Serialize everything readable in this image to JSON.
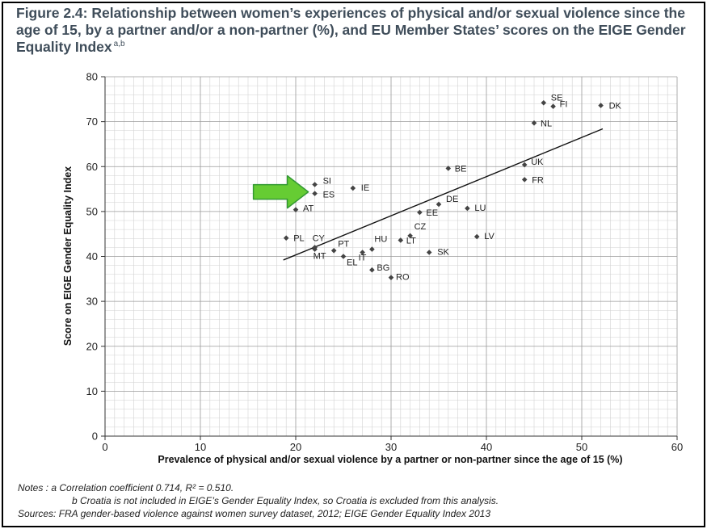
{
  "figure": {
    "title": "Figure 2.4: Relationship between women’s experiences of physical and/or sexual violence since the age of 15, by a partner and/or a non-partner (%), and EU Member States’ scores on the EIGE Gender Equality Index",
    "title_superscript": "a,b"
  },
  "chart_data": {
    "type": "scatter",
    "xlabel": "Prevalence of physical and/or sexual violence by a partner or non-partner since the age of 15 (%)",
    "ylabel": "Score on EIGE Gender Equality Index",
    "xlim": [
      0,
      60
    ],
    "ylim": [
      0,
      80
    ],
    "x_ticks": [
      0,
      10,
      20,
      30,
      40,
      50,
      60
    ],
    "y_ticks": [
      0,
      10,
      20,
      30,
      40,
      50,
      60,
      70,
      80
    ],
    "grid": true,
    "marker_color": "#444444",
    "points": [
      {
        "label": "SE",
        "x": 46,
        "y": 74.2
      },
      {
        "label": "FI",
        "x": 47,
        "y": 73.4
      },
      {
        "label": "DK",
        "x": 52,
        "y": 73.6
      },
      {
        "label": "NL",
        "x": 45,
        "y": 69.7
      },
      {
        "label": "UK",
        "x": 44,
        "y": 60.4
      },
      {
        "label": "FR",
        "x": 44,
        "y": 57.1
      },
      {
        "label": "BE",
        "x": 36,
        "y": 59.6
      },
      {
        "label": "IE",
        "x": 26,
        "y": 55.2
      },
      {
        "label": "SI",
        "x": 22,
        "y": 56.0
      },
      {
        "label": "ES",
        "x": 22,
        "y": 54.0
      },
      {
        "label": "AT",
        "x": 20,
        "y": 50.4
      },
      {
        "label": "DE",
        "x": 35,
        "y": 51.6
      },
      {
        "label": "EE",
        "x": 33,
        "y": 49.8
      },
      {
        "label": "LU",
        "x": 38,
        "y": 50.7
      },
      {
        "label": "CZ",
        "x": 32,
        "y": 44.6
      },
      {
        "label": "LT",
        "x": 31,
        "y": 43.6
      },
      {
        "label": "LV",
        "x": 39,
        "y": 44.4
      },
      {
        "label": "SK",
        "x": 34,
        "y": 40.9
      },
      {
        "label": "PL",
        "x": 19,
        "y": 44.1
      },
      {
        "label": "CY",
        "x": 22,
        "y": 42.0
      },
      {
        "label": "MT",
        "x": 22,
        "y": 41.6
      },
      {
        "label": "PT",
        "x": 24,
        "y": 41.3
      },
      {
        "label": "HU",
        "x": 28,
        "y": 41.6
      },
      {
        "label": "EL",
        "x": 25,
        "y": 40.0
      },
      {
        "label": "IT",
        "x": 27,
        "y": 40.9
      },
      {
        "label": "BG",
        "x": 28,
        "y": 37.0
      },
      {
        "label": "RO",
        "x": 30,
        "y": 35.3
      }
    ],
    "trendline": {
      "x": [
        18.7,
        52.2
      ],
      "y": [
        39.2,
        68.4
      ]
    },
    "highlight": {
      "label": "ES",
      "color": "#66cc33",
      "outline": "#339933",
      "icon": "arrow-right-icon"
    }
  },
  "notes": {
    "lines": [
      "Notes :  a  Correlation coefficient 0.714, R² = 0.510.",
      "b  Croatia is not included in EIGE’s Gender Equality Index, so Croatia is excluded from this analysis.",
      "Sources: FRA gender-based violence against women survey dataset, 2012; EIGE Gender Equality Index 2013"
    ]
  }
}
